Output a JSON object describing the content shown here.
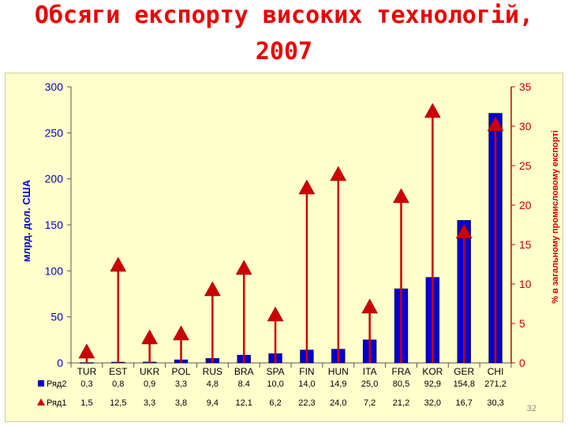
{
  "title_line1": "Обсяги експорту високих технологій,",
  "title_line2": "2007",
  "page_number": "32",
  "colors": {
    "title": "#e80000",
    "bar": "#0000cc",
    "line": "#cc0000",
    "axis_text": "#0000cc",
    "panel": "#ffffcc"
  },
  "chart_data": {
    "type": "bar",
    "categories": [
      "TUR",
      "EST",
      "UKR",
      "POL",
      "RUS",
      "BRA",
      "SPA",
      "FIN",
      "HUN",
      "ITA",
      "FRA",
      "KOR",
      "GER",
      "CHI"
    ],
    "ylabel": "млрд. дол. США",
    "y2label": "% в загальному промисловому експорті",
    "ylim": [
      0,
      300
    ],
    "y2lim": [
      0,
      35
    ],
    "yticks": [
      "0",
      "50",
      "100",
      "150",
      "200",
      "250",
      "300"
    ],
    "y2ticks": [
      "0",
      "5",
      "10",
      "15",
      "20",
      "25",
      "30",
      "35"
    ],
    "series": [
      {
        "name": "Ряд2",
        "axis": "left",
        "kind": "bar",
        "values": [
          0.3,
          0.8,
          0.9,
          3.3,
          4.8,
          8.4,
          10.0,
          14.0,
          14.9,
          25.0,
          80.5,
          92.9,
          154.8,
          271.2
        ],
        "labels": [
          "0,3",
          "0,8",
          "0,9",
          "3,3",
          "4,8",
          "8.4",
          "10,0",
          "14,0",
          "14,9",
          "25,0",
          "80,5",
          "92,9",
          "154,8",
          "271,2"
        ]
      },
      {
        "name": "Ряд1",
        "axis": "right",
        "kind": "triangle-stem",
        "values": [
          1.5,
          12.5,
          3.3,
          3.8,
          9.4,
          12.1,
          6.2,
          22.3,
          24.0,
          7.2,
          21.2,
          32.0,
          16.7,
          30.3
        ],
        "labels": [
          "1,5",
          "12,5",
          "3,3",
          "3,8",
          "9,4",
          "12,1",
          "6,2",
          "22,3",
          "24,0",
          "7,2",
          "21,2",
          "32,0",
          "16,7",
          "30,3"
        ]
      }
    ],
    "grid": false,
    "legend": "bottom-left data table"
  }
}
